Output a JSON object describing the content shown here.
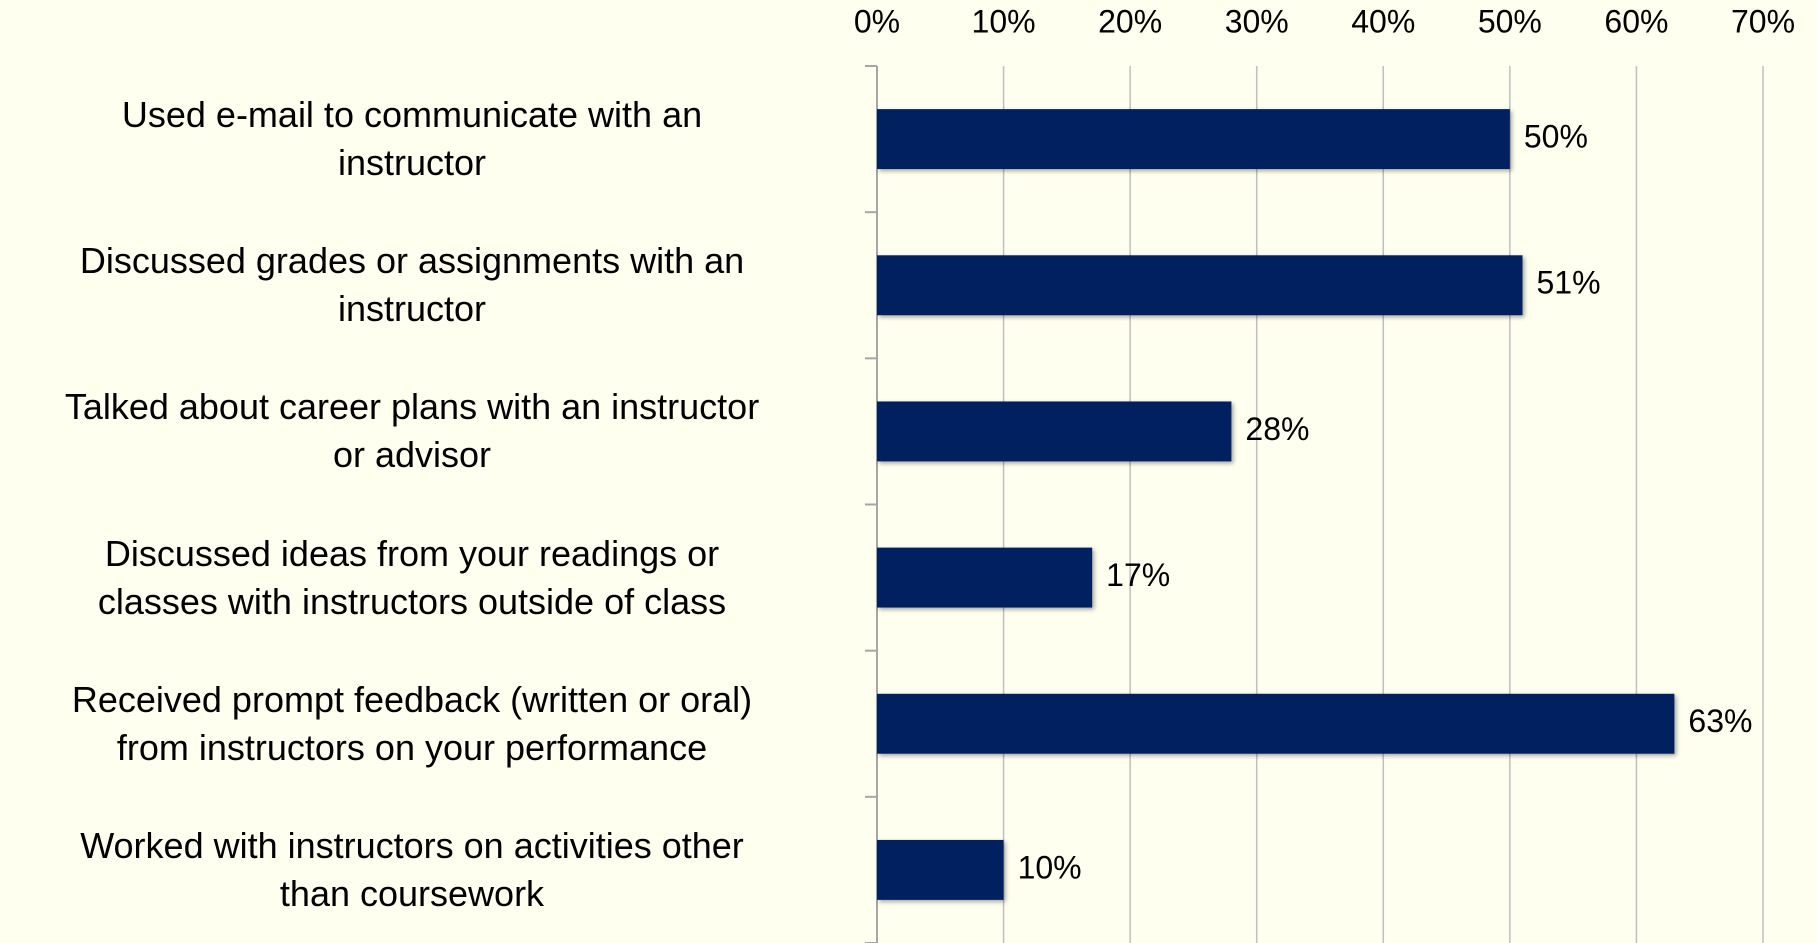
{
  "chart_data": {
    "type": "bar",
    "orientation": "horizontal",
    "categories": [
      "Used e-mail to communicate with an\ninstructor",
      "Discussed grades or assignments with an\ninstructor",
      "Talked about career plans with an instructor\nor advisor",
      "Discussed ideas from your readings or\nclasses with instructors outside of class",
      "Received prompt feedback (written or oral)\nfrom instructors on your performance",
      "Worked with instructors on activities other\nthan coursework"
    ],
    "values": [
      50,
      51,
      28,
      17,
      63,
      10
    ],
    "value_labels": [
      "50%",
      "51%",
      "28%",
      "17%",
      "63%",
      "10%"
    ],
    "color": "#002060",
    "xlim": [
      0,
      70
    ],
    "xticks": [
      {
        "value": 0,
        "label": "0%"
      },
      {
        "value": 10,
        "label": "10%"
      },
      {
        "value": 20,
        "label": "20%"
      },
      {
        "value": 30,
        "label": "30%"
      },
      {
        "value": 40,
        "label": "40%"
      },
      {
        "value": 50,
        "label": "50%"
      },
      {
        "value": 60,
        "label": "60%"
      },
      {
        "value": 70,
        "label": "70%"
      }
    ],
    "grid": true
  }
}
